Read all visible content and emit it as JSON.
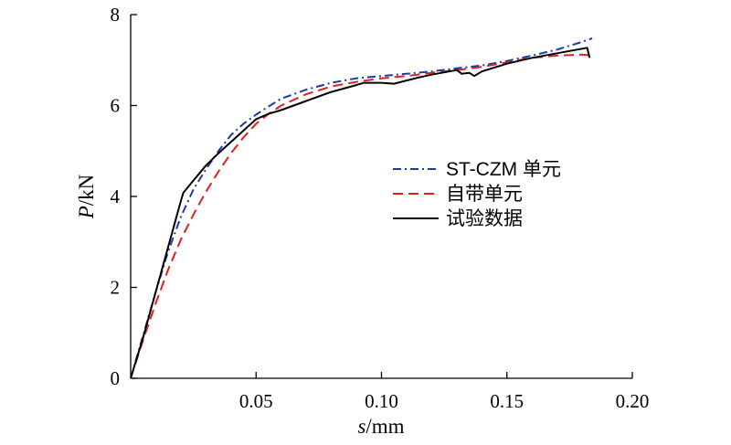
{
  "chart_data": {
    "type": "line",
    "xlabel_italic": "s",
    "xlabel_unit": "/mm",
    "ylabel_italic": "P",
    "ylabel_unit": "/kN",
    "xlim": [
      0,
      0.2
    ],
    "ylim": [
      0,
      8
    ],
    "x_ticks": [
      0.05,
      0.1,
      0.15,
      0.2
    ],
    "x_tick_labels": [
      "0.05",
      "0.10",
      "0.15",
      "0.20"
    ],
    "y_ticks": [
      0,
      2,
      4,
      6,
      8
    ],
    "y_tick_labels": [
      "0",
      "2",
      "4",
      "6",
      "8"
    ],
    "grid": false,
    "legend_position": "center-right",
    "series": [
      {
        "name": "ST-CZM 单元",
        "color": "#1a3aa8",
        "dash": "dashdot",
        "x": [
          0,
          0.005,
          0.01,
          0.015,
          0.02,
          0.025,
          0.03,
          0.035,
          0.04,
          0.045,
          0.05,
          0.055,
          0.06,
          0.07,
          0.08,
          0.09,
          0.1,
          0.11,
          0.12,
          0.13,
          0.14,
          0.15,
          0.16,
          0.17,
          0.18,
          0.184
        ],
        "y": [
          0,
          0.95,
          1.9,
          2.8,
          3.55,
          4.15,
          4.6,
          5.0,
          5.35,
          5.6,
          5.8,
          5.98,
          6.15,
          6.35,
          6.5,
          6.6,
          6.65,
          6.7,
          6.75,
          6.82,
          6.88,
          6.98,
          7.1,
          7.23,
          7.4,
          7.48
        ]
      },
      {
        "name": "自带单元",
        "color": "#e02020",
        "dash": "dashed",
        "x": [
          0,
          0.005,
          0.01,
          0.015,
          0.02,
          0.025,
          0.03,
          0.035,
          0.04,
          0.045,
          0.05,
          0.055,
          0.06,
          0.07,
          0.08,
          0.09,
          0.1,
          0.11,
          0.12,
          0.13,
          0.14,
          0.15,
          0.16,
          0.17,
          0.18,
          0.184
        ],
        "y": [
          0,
          0.85,
          1.65,
          2.4,
          3.05,
          3.6,
          4.1,
          4.55,
          4.95,
          5.3,
          5.6,
          5.82,
          6.0,
          6.25,
          6.42,
          6.52,
          6.6,
          6.65,
          6.72,
          6.78,
          6.85,
          6.95,
          7.05,
          7.1,
          7.12,
          7.1
        ]
      },
      {
        "name": "试验数据",
        "color": "#000000",
        "dash": "solid",
        "x": [
          0,
          0.005,
          0.01,
          0.015,
          0.02,
          0.021,
          0.025,
          0.03,
          0.035,
          0.04,
          0.045,
          0.05,
          0.055,
          0.06,
          0.065,
          0.07,
          0.08,
          0.09,
          0.093,
          0.1,
          0.105,
          0.11,
          0.115,
          0.12,
          0.125,
          0.13,
          0.132,
          0.135,
          0.137,
          0.14,
          0.15,
          0.16,
          0.17,
          0.18,
          0.182,
          0.183
        ],
        "y": [
          0,
          0.9,
          1.9,
          2.9,
          3.9,
          4.08,
          4.35,
          4.68,
          4.95,
          5.2,
          5.45,
          5.7,
          5.82,
          5.9,
          6.0,
          6.1,
          6.3,
          6.45,
          6.5,
          6.5,
          6.48,
          6.55,
          6.62,
          6.68,
          6.73,
          6.78,
          6.7,
          6.72,
          6.65,
          6.75,
          6.92,
          7.05,
          7.15,
          7.25,
          7.27,
          7.05
        ]
      }
    ]
  }
}
